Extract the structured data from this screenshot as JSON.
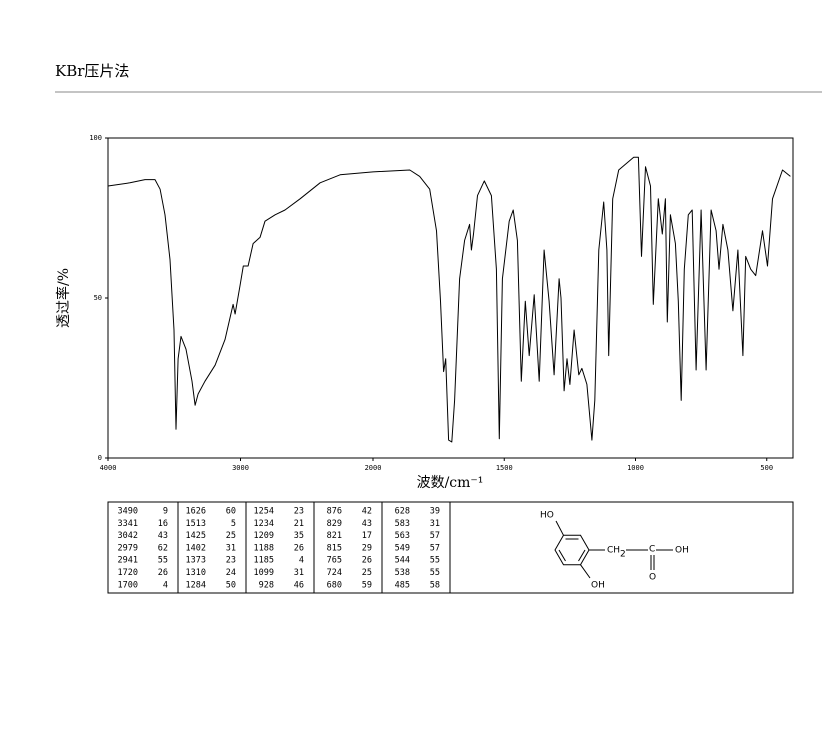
{
  "header": {
    "title": "KBr压片法"
  },
  "chart_data": {
    "type": "line",
    "xlabel": "波数/cm⁻¹",
    "ylabel": "透过率/%",
    "xlim": [
      4000,
      400
    ],
    "xbreak": 2000,
    "xticks": [
      4000,
      3000,
      2000,
      1500,
      1000,
      500
    ],
    "ylim": [
      0,
      100
    ],
    "yticks": [
      0,
      50,
      100
    ],
    "color": "#000000",
    "x": [
      4000,
      3834,
      3721,
      3645,
      3607,
      3570,
      3532,
      3502,
      3487,
      3471,
      3449,
      3411,
      3366,
      3343,
      3320,
      3268,
      3192,
      3117,
      3056,
      3041,
      3003,
      2979,
      2943,
      2905,
      2852,
      2815,
      2739,
      2664,
      2550,
      2399,
      2248,
      2000,
      1860,
      1822,
      1784,
      1758,
      1743,
      1731,
      1723,
      1712,
      1700,
      1689,
      1670,
      1651,
      1632,
      1625,
      1617,
      1602,
      1576,
      1549,
      1530,
      1519,
      1507,
      1481,
      1466,
      1450,
      1435,
      1420,
      1405,
      1386,
      1367,
      1348,
      1329,
      1310,
      1291,
      1284,
      1272,
      1261,
      1250,
      1234,
      1216,
      1204,
      1185,
      1166,
      1155,
      1140,
      1121,
      1109,
      1102,
      1087,
      1064,
      1007,
      989,
      977,
      962,
      943,
      932,
      913,
      898,
      886,
      879,
      867,
      848,
      837,
      826,
      814,
      799,
      784,
      769,
      750,
      731,
      712,
      693,
      682,
      667,
      648,
      629,
      610,
      591,
      580,
      561,
      542,
      516,
      497,
      478,
      440,
      410
    ],
    "values": [
      85,
      86,
      87,
      87,
      84,
      76,
      62,
      40,
      9,
      31,
      38,
      34,
      24,
      16.5,
      20,
      24,
      29,
      37,
      48,
      45,
      54,
      60,
      60,
      67,
      69,
      74,
      76,
      77.5,
      81,
      86,
      88.5,
      89.4,
      90,
      88,
      84,
      71,
      49,
      27,
      31,
      5.6,
      5,
      18,
      56,
      68,
      73,
      65,
      70,
      82,
      86.6,
      82,
      59,
      6,
      56,
      74,
      77.5,
      68,
      24,
      49,
      32,
      51,
      24,
      65,
      49,
      26,
      56,
      50,
      21,
      31,
      23,
      40,
      26,
      28,
      23,
      5.6,
      18,
      65,
      80,
      65,
      32,
      81,
      90,
      94,
      94,
      63,
      91,
      85,
      48,
      81,
      70,
      81,
      42.5,
      76,
      67,
      49,
      18,
      59,
      76,
      77.5,
      27.5,
      77.5,
      27.5,
      77.5,
      71,
      59,
      73,
      65,
      46,
      65,
      32,
      63,
      59,
      57,
      71,
      60,
      81,
      90,
      88
    ]
  },
  "peak_table": [
    [
      3490,
      9
    ],
    [
      3341,
      16
    ],
    [
      3042,
      43
    ],
    [
      2979,
      62
    ],
    [
      2941,
      55
    ],
    [
      1720,
      26
    ],
    [
      1700,
      4
    ],
    [
      1626,
      60
    ],
    [
      1513,
      5
    ],
    [
      1425,
      25
    ],
    [
      1402,
      31
    ],
    [
      1373,
      23
    ],
    [
      1310,
      24
    ],
    [
      1284,
      50
    ],
    [
      1254,
      23
    ],
    [
      1234,
      21
    ],
    [
      1209,
      35
    ],
    [
      1188,
      26
    ],
    [
      1185,
      4
    ],
    [
      1099,
      31
    ],
    [
      928,
      46
    ],
    [
      876,
      42
    ],
    [
      829,
      43
    ],
    [
      821,
      17
    ],
    [
      815,
      29
    ],
    [
      765,
      26
    ],
    [
      724,
      25
    ],
    [
      680,
      59
    ],
    [
      628,
      39
    ],
    [
      583,
      31
    ],
    [
      563,
      57
    ],
    [
      549,
      57
    ],
    [
      544,
      55
    ],
    [
      538,
      55
    ],
    [
      485,
      58
    ]
  ],
  "structure": {
    "labels": [
      "HO",
      "OH",
      "CH",
      "2",
      "C",
      "OH",
      "O"
    ]
  }
}
